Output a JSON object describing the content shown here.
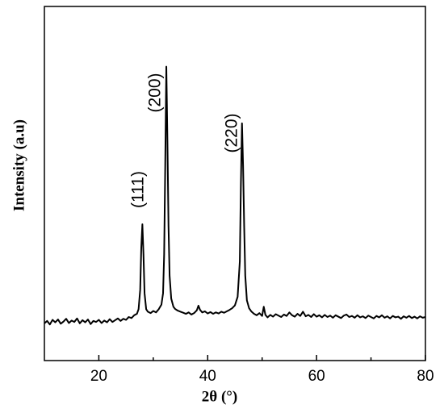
{
  "chart_data": {
    "type": "line",
    "xlabel": "2θ (°)",
    "ylabel": "Intensity (a.u)",
    "annotations": [
      "(111)",
      "(200)",
      "(220)"
    ],
    "color": "#000000",
    "xlim": [
      10,
      80
    ],
    "xticks": [
      20,
      40,
      60,
      80
    ],
    "xminorticks": [
      30,
      50,
      70
    ],
    "ylim": [
      0,
      100
    ],
    "x": [
      10,
      10.5,
      11,
      11.5,
      12,
      12.5,
      13,
      13.5,
      14,
      14.5,
      15,
      15.5,
      16,
      16.5,
      17,
      17.5,
      18,
      18.5,
      19,
      19.5,
      20,
      20.5,
      21,
      21.5,
      22,
      22.5,
      23,
      23.5,
      24,
      24.5,
      25,
      25.5,
      26,
      26.5,
      27,
      27.3,
      27.6,
      27.8,
      28.0,
      28.2,
      28.4,
      28.7,
      29,
      29.5,
      30,
      30.5,
      31,
      31.5,
      31.8,
      32.0,
      32.2,
      32.4,
      32.6,
      32.8,
      33.0,
      33.3,
      33.7,
      34,
      34.5,
      35,
      35.5,
      36,
      36.5,
      37,
      37.5,
      38,
      38.3,
      38.6,
      39,
      39.5,
      40,
      40.5,
      41,
      41.5,
      42,
      42.5,
      43,
      43.5,
      44,
      44.5,
      45,
      45.5,
      45.9,
      46.1,
      46.3,
      46.5,
      46.7,
      46.9,
      47.2,
      47.6,
      48,
      48.5,
      49,
      49.5,
      50,
      50.3,
      50.6,
      51,
      51.5,
      52,
      52.5,
      53,
      53.5,
      54,
      54.5,
      55,
      55.5,
      56,
      56.5,
      57,
      57.5,
      58,
      58.5,
      59,
      59.5,
      60,
      60.5,
      61,
      61.5,
      62,
      62.5,
      63,
      63.5,
      64,
      64.5,
      65,
      65.5,
      66,
      66.5,
      67,
      67.5,
      68,
      68.5,
      69,
      69.5,
      70,
      70.5,
      71,
      71.5,
      72,
      72.5,
      73,
      73.5,
      74,
      74.5,
      75,
      75.5,
      76,
      76.5,
      77,
      77.5,
      78,
      78.5,
      79,
      79.5,
      80
    ],
    "values": [
      10.5,
      11.2,
      10.2,
      11.5,
      10.8,
      11.6,
      10.4,
      11.0,
      11.8,
      10.6,
      11.3,
      10.9,
      11.9,
      10.5,
      11.4,
      10.8,
      11.6,
      10.3,
      11.2,
      10.9,
      11.5,
      10.6,
      11.3,
      10.8,
      11.7,
      10.9,
      11.4,
      11.9,
      11.2,
      11.8,
      11.5,
      12.3,
      12.0,
      12.8,
      13.2,
      14.5,
      20,
      32,
      38.5,
      30,
      19,
      14.5,
      13.8,
      13.4,
      14.0,
      13.6,
      14.5,
      15.8,
      19,
      30,
      55,
      83,
      62,
      38,
      24,
      17.5,
      15.2,
      14.6,
      14.1,
      13.8,
      13.5,
      13.2,
      13.6,
      13.0,
      13.4,
      14.2,
      15.5,
      14.3,
      13.6,
      13.9,
      13.3,
      13.7,
      13.2,
      13.6,
      13.3,
      13.8,
      13.5,
      13.9,
      14.3,
      14.8,
      15.6,
      18,
      28,
      50,
      67,
      55,
      38,
      24,
      17,
      14.8,
      13.9,
      13.2,
      12.8,
      13.4,
      12.6,
      15.2,
      12.9,
      12.2,
      12.9,
      12.4,
      13.1,
      12.7,
      12.3,
      13.0,
      12.6,
      13.6,
      12.8,
      12.4,
      13.2,
      12.6,
      13.8,
      12.5,
      12.9,
      12.3,
      13.1,
      12.4,
      12.8,
      12.2,
      12.9,
      12.3,
      12.7,
      12.1,
      12.8,
      12.4,
      12.0,
      12.7,
      13.0,
      12.3,
      12.6,
      12.1,
      12.8,
      12.2,
      12.5,
      12.0,
      12.7,
      12.3,
      11.9,
      12.6,
      12.2,
      12.8,
      12.1,
      12.5,
      11.9,
      12.6,
      12.2,
      12.4,
      11.8,
      12.5,
      12.1,
      12.6,
      12.0,
      12.4,
      11.9,
      12.5,
      12.1,
      12.3
    ]
  }
}
